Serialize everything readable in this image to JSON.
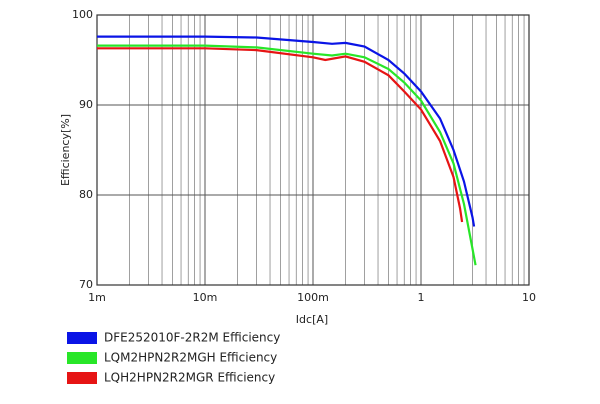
{
  "chart_data": {
    "type": "line",
    "xlabel": "Idc[A]",
    "ylabel": "Efficiency[%]",
    "xscale": "log",
    "grid": true,
    "minor_grid": true,
    "xlim": [
      0.001,
      10
    ],
    "ylim": [
      70,
      100
    ],
    "xticks": [
      {
        "value": 0.001,
        "label": "1m"
      },
      {
        "value": 0.01,
        "label": "10m"
      },
      {
        "value": 0.1,
        "label": "100m"
      },
      1,
      10
    ],
    "yticks": [
      70,
      80,
      90,
      100
    ],
    "legend": "bottom",
    "series": [
      {
        "name": "DFE252010F-2R2M Efficiency",
        "color": "#0a14e6",
        "x": [
          0.001,
          0.01,
          0.03,
          0.1,
          0.15,
          0.2,
          0.3,
          0.5,
          0.7,
          1,
          1.5,
          2,
          2.5,
          3,
          3.1
        ],
        "values": [
          97.6,
          97.6,
          97.5,
          97.0,
          96.8,
          96.9,
          96.5,
          95,
          93.5,
          91.5,
          88.5,
          85,
          81.5,
          77.5,
          76.5
        ]
      },
      {
        "name": "LQM2HPN2R2MGH Efficiency",
        "color": "#28e628",
        "x": [
          0.001,
          0.01,
          0.03,
          0.1,
          0.15,
          0.2,
          0.3,
          0.5,
          0.7,
          1,
          1.5,
          2,
          2.5,
          3,
          3.2
        ],
        "values": [
          96.6,
          96.6,
          96.4,
          95.7,
          95.5,
          95.7,
          95.3,
          94,
          92.5,
          90.5,
          87,
          83.5,
          79,
          74,
          72.2
        ]
      },
      {
        "name": "LQH2HPN2R2MGR Efficiency",
        "color": "#e61414",
        "x": [
          0.001,
          0.01,
          0.03,
          0.1,
          0.13,
          0.2,
          0.3,
          0.5,
          0.7,
          1,
          1.5,
          2,
          2.3,
          2.4
        ],
        "values": [
          96.3,
          96.3,
          96.1,
          95.3,
          95.0,
          95.4,
          94.8,
          93.3,
          91.5,
          89.5,
          86,
          82,
          78.5,
          77
        ]
      }
    ]
  }
}
